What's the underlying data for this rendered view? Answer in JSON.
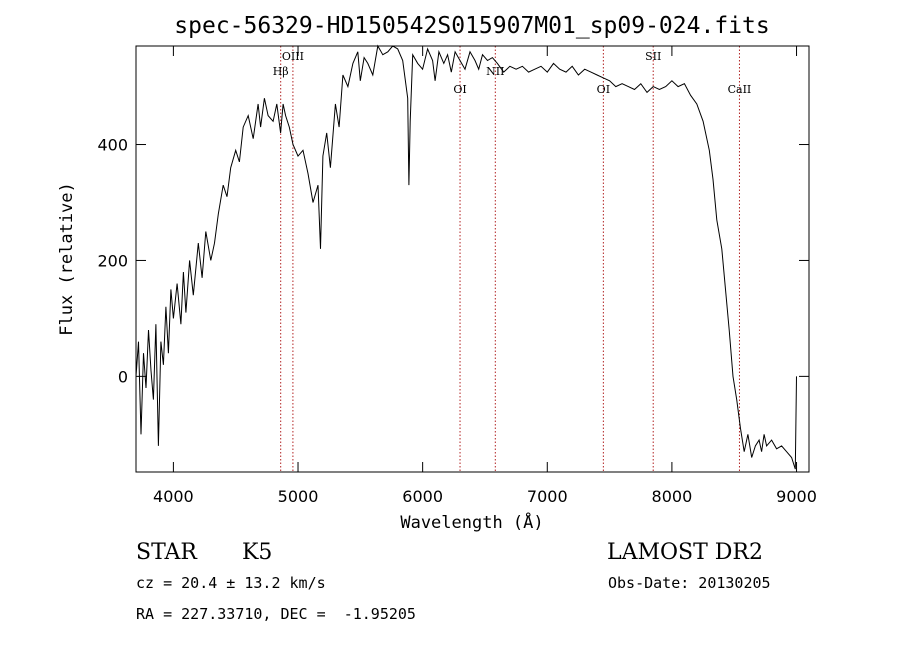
{
  "chart_data": {
    "type": "line",
    "title": "spec-56329-HD150542S015907M01_sp09-024.fits",
    "xlabel": "Wavelength (Å)",
    "ylabel": "Flux (relative)",
    "xlim": [
      3700,
      9100
    ],
    "ylim": [
      -165,
      570
    ],
    "x_ticks": [
      4000,
      5000,
      6000,
      7000,
      8000,
      9000
    ],
    "y_ticks": [
      0,
      200,
      400
    ],
    "grid": false,
    "series": [
      {
        "x": [
          3700,
          3720,
          3740,
          3760,
          3780,
          3800,
          3820,
          3840,
          3860,
          3880,
          3900,
          3920,
          3940,
          3960,
          3980,
          4000,
          4030,
          4060,
          4080,
          4100,
          4130,
          4160,
          4200,
          4230,
          4260,
          4300,
          4330,
          4360,
          4400,
          4430,
          4460,
          4500,
          4530,
          4560,
          4600,
          4640,
          4680,
          4700,
          4730,
          4760,
          4800,
          4830,
          4860,
          4880,
          4900,
          4930,
          4960,
          5000,
          5040,
          5080,
          5120,
          5160,
          5180,
          5200,
          5230,
          5260,
          5300,
          5330,
          5360,
          5400,
          5440,
          5480,
          5500,
          5530,
          5560,
          5600,
          5640,
          5680,
          5720,
          5760,
          5800,
          5840,
          5880,
          5890,
          5900,
          5920,
          5960,
          6000,
          6040,
          6080,
          6100,
          6130,
          6170,
          6200,
          6230,
          6260,
          6300,
          6340,
          6380,
          6420,
          6450,
          6480,
          6520,
          6560,
          6600,
          6650,
          6700,
          6750,
          6800,
          6850,
          6900,
          6950,
          7000,
          7050,
          7100,
          7150,
          7200,
          7250,
          7300,
          7350,
          7400,
          7450,
          7500,
          7550,
          7600,
          7650,
          7700,
          7750,
          7800,
          7850,
          7900,
          7950,
          8000,
          8050,
          8100,
          8150,
          8200,
          8250,
          8300,
          8330,
          8360,
          8400,
          8430,
          8460,
          8490,
          8520,
          8550,
          8580,
          8610,
          8640,
          8670,
          8700,
          8720,
          8740,
          8760,
          8800,
          8840,
          8880,
          8920,
          8960,
          8990,
          9000
        ],
        "y": [
          0,
          60,
          -100,
          40,
          -20,
          80,
          10,
          -40,
          90,
          -120,
          60,
          20,
          120,
          40,
          150,
          100,
          160,
          90,
          180,
          110,
          200,
          140,
          230,
          170,
          250,
          200,
          230,
          280,
          330,
          310,
          360,
          390,
          370,
          430,
          450,
          410,
          470,
          430,
          480,
          450,
          440,
          470,
          420,
          470,
          450,
          430,
          400,
          380,
          390,
          350,
          300,
          330,
          220,
          380,
          420,
          360,
          470,
          430,
          520,
          500,
          540,
          560,
          510,
          550,
          540,
          520,
          570,
          555,
          560,
          575,
          565,
          545,
          480,
          330,
          440,
          555,
          540,
          530,
          565,
          545,
          510,
          560,
          540,
          555,
          525,
          560,
          545,
          530,
          560,
          545,
          530,
          555,
          545,
          550,
          540,
          525,
          535,
          530,
          535,
          525,
          530,
          535,
          525,
          540,
          530,
          525,
          535,
          520,
          530,
          525,
          520,
          515,
          510,
          500,
          505,
          500,
          495,
          505,
          490,
          500,
          495,
          500,
          510,
          500,
          505,
          485,
          470,
          440,
          390,
          340,
          270,
          220,
          150,
          80,
          0,
          -40,
          -90,
          -130,
          -100,
          -140,
          -120,
          -110,
          -130,
          -100,
          -120,
          -110,
          -125,
          -120,
          -130,
          -140,
          -160,
          0
        ]
      }
    ],
    "lines": [
      {
        "label": "Hβ",
        "x": 4861
      },
      {
        "label": "OIII",
        "x": 4959
      },
      {
        "label": "OI",
        "x": 6300
      },
      {
        "label": "NII",
        "x": 6583
      },
      {
        "label": "OI",
        "x": 7450
      },
      {
        "label": "SII",
        "x": 7850
      },
      {
        "label": "CaII",
        "x": 8542
      }
    ]
  },
  "info": {
    "object_type": "STAR",
    "subclass": "K5",
    "survey": "LAMOST DR2",
    "redshift": "cz = 20.4 ± 13.2 km/s",
    "obs_date": "Obs-Date: 20130205",
    "coords": "RA = 227.33710, DEC =  -1.95205"
  }
}
